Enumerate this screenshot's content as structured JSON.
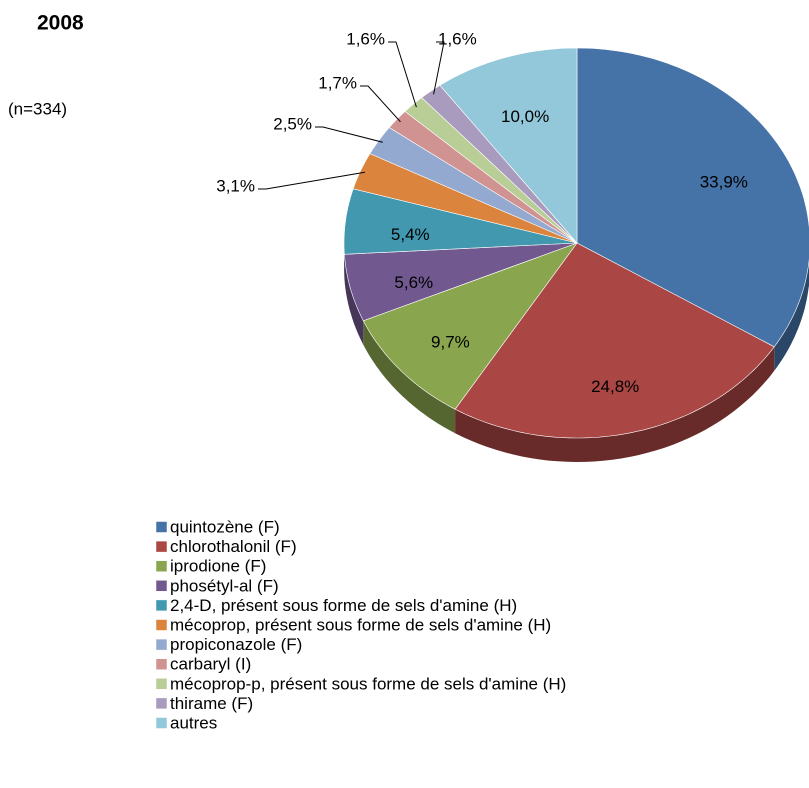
{
  "chart_data": {
    "type": "pie",
    "title": "2008",
    "subtitle": "(n=334)",
    "categories": [
      "quintozène (F)",
      "chlorothalonil (F)",
      "iprodione (F)",
      "phosétyl-al (F)",
      "2,4-D, présent sous forme de sels d'amine (H)",
      "mécoprop, présent sous forme de sels d'amine (H)",
      "propiconazole (F)",
      "carbaryl (I)",
      "mécoprop-p, présent sous forme de sels d'amine (H)",
      "thirame (F)",
      "autres"
    ],
    "values": [
      33.9,
      24.8,
      9.7,
      5.6,
      5.4,
      3.1,
      2.5,
      1.7,
      1.6,
      1.6,
      10.0
    ],
    "value_labels": [
      "33,9%",
      "24,8%",
      "9,7%",
      "5,6%",
      "5,4%",
      "3,1%",
      "2,5%",
      "1,7%",
      "1,6%",
      "1,6%",
      "10,0%"
    ],
    "colors": [
      "#4572a7",
      "#aa4643",
      "#89a54e",
      "#71588f",
      "#4198af",
      "#db843d",
      "#93a9cf",
      "#d19392",
      "#b9cd96",
      "#a99bbd",
      "#92c8da"
    ],
    "legend": "bottom"
  }
}
